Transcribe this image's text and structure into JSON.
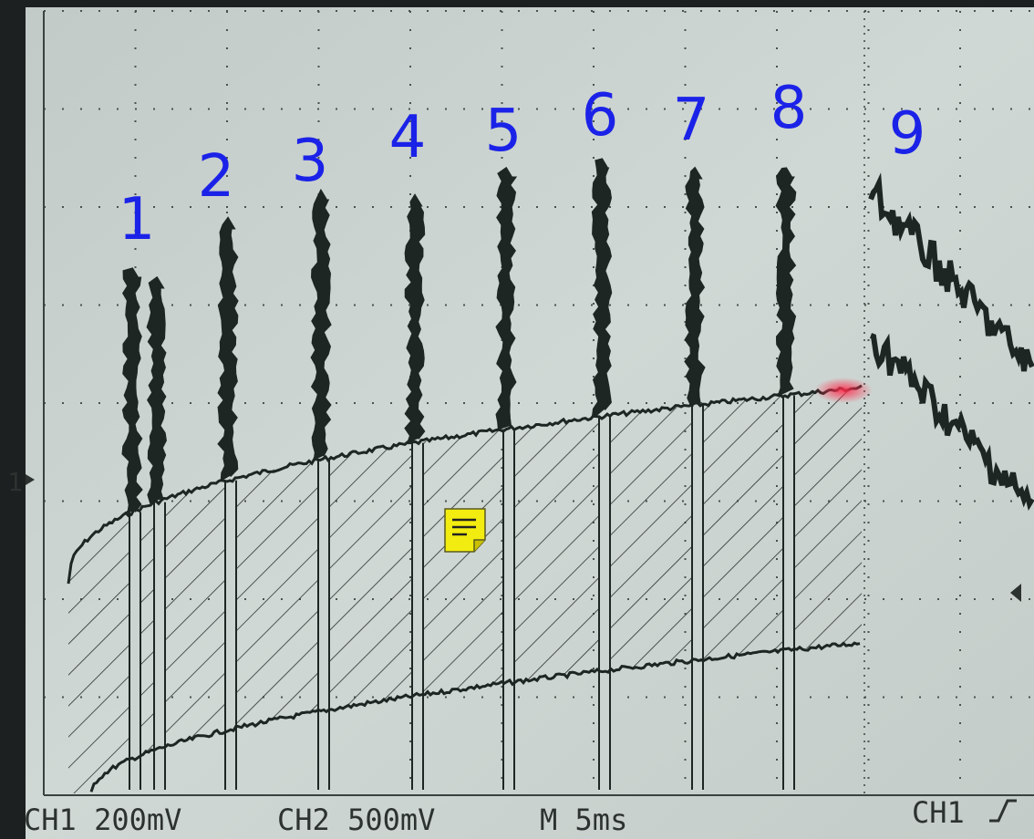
{
  "pulse_labels": [
    "1",
    "2",
    "3",
    "4",
    "5",
    "6",
    "7",
    "8",
    "9"
  ],
  "channel_marker": "1",
  "readouts": {
    "ch1": "CH1 200mV",
    "ch2": "CH2 500mV",
    "timebase": "M 5ms",
    "trigger_source": "CH1"
  }
}
